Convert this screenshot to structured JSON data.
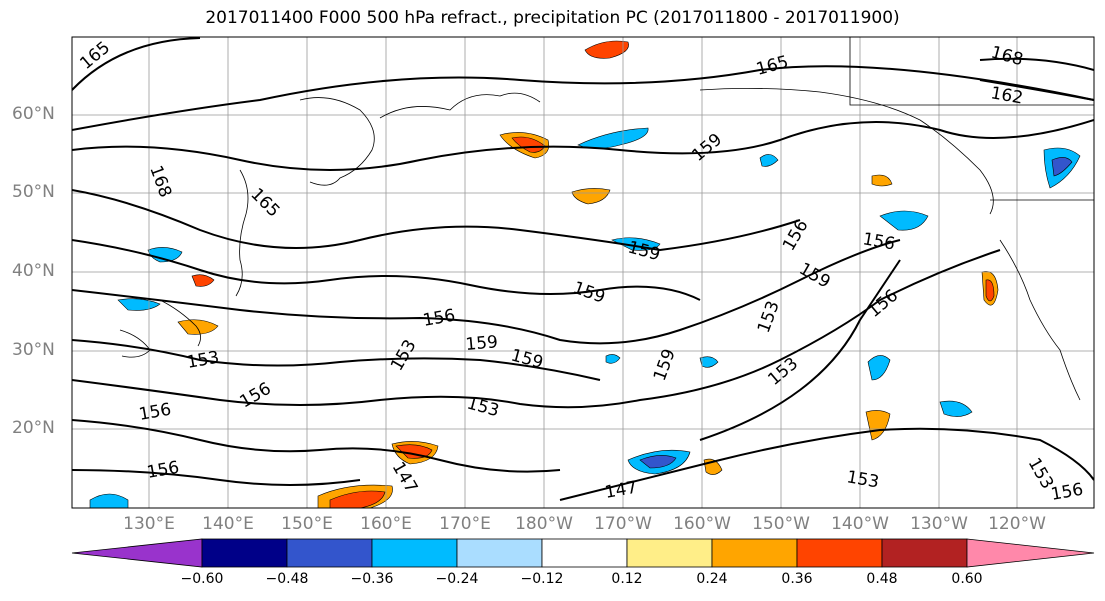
{
  "title": "2017011400 F000 500 hPa refract., precipitation PC (2017011800 - 2017011900)",
  "lat_labels": [
    "60°N",
    "50°N",
    "40°N",
    "30°N",
    "20°N"
  ],
  "lon_labels": [
    "130°E",
    "140°E",
    "150°E",
    "160°E",
    "170°E",
    "180°W",
    "170°W",
    "160°W",
    "150°W",
    "140°W",
    "130°W",
    "120°W"
  ],
  "contour_labels": [
    "165",
    "168",
    "165",
    "165",
    "168",
    "162",
    "159",
    "156",
    "159",
    "156",
    "159",
    "159",
    "156",
    "153",
    "153",
    "159",
    "159",
    "153",
    "159",
    "153",
    "156",
    "156",
    "153",
    "156",
    "147",
    "147",
    "153",
    "153",
    "156",
    "156"
  ],
  "colorbar": {
    "colors": [
      "#9933cc",
      "#000088",
      "#3355cc",
      "#00bbff",
      "#aaddff",
      "#ffffff",
      "#ffee88",
      "#ffa500",
      "#ff4400",
      "#b22222",
      "#ff88aa"
    ],
    "labels": [
      "−0.60",
      "−0.48",
      "−0.36",
      "−0.24",
      "−0.12",
      "0.12",
      "0.24",
      "0.36",
      "0.48",
      "0.60"
    ]
  }
}
